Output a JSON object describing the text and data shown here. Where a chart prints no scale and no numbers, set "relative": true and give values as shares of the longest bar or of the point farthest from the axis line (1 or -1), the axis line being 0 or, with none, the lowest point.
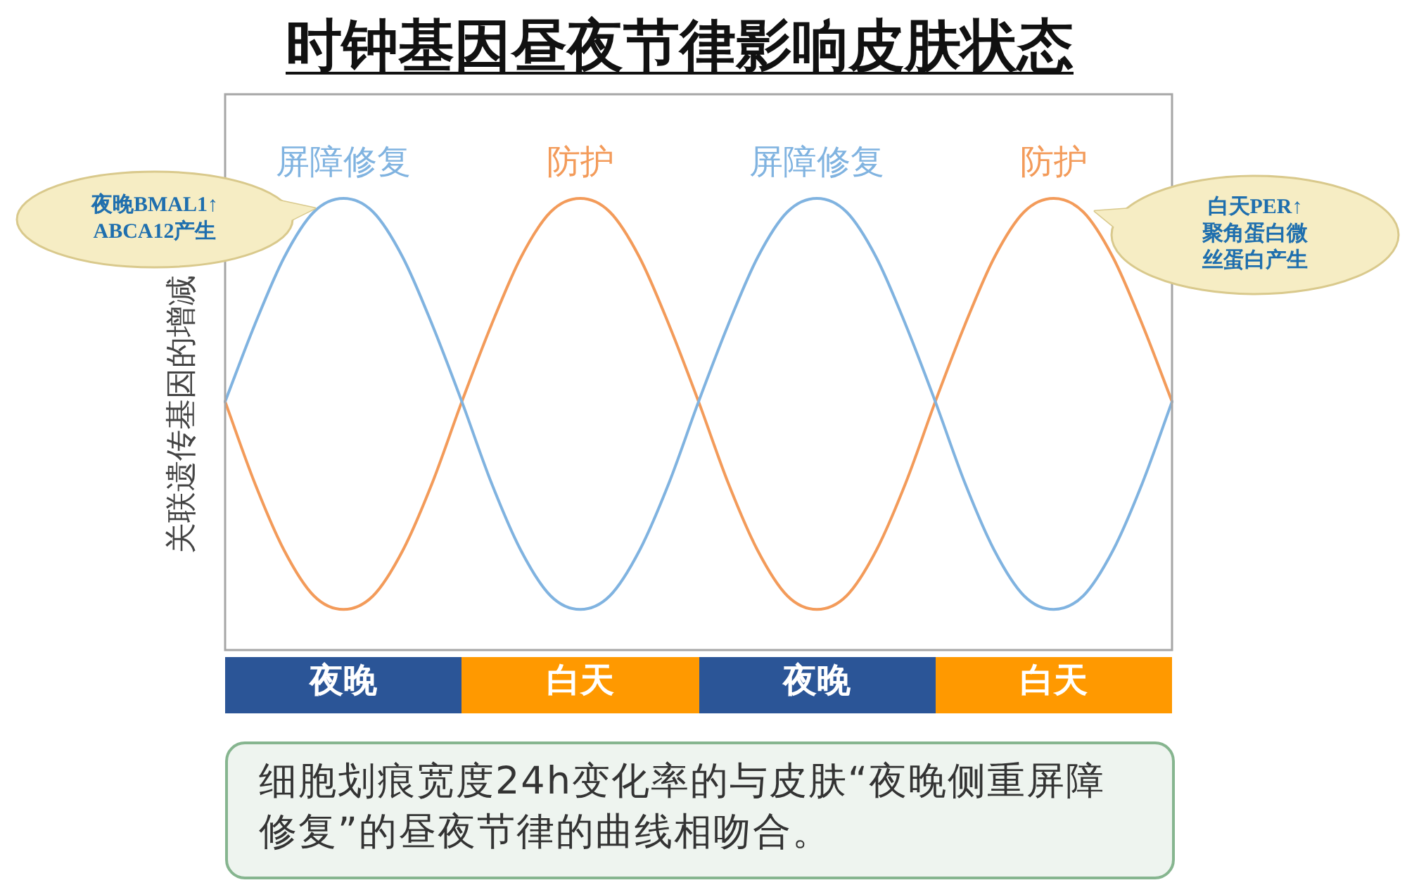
{
  "chart_data": {
    "type": "line",
    "title": "时钟基因昼夜节律影响皮肤状态",
    "ylabel": "关联遗传基因的增减",
    "relative": true,
    "line_style": "solid",
    "categories": [
      null,
      null,
      null,
      null,
      "夜晚",
      null,
      null,
      null,
      null,
      null,
      null,
      null,
      "白天",
      null,
      null,
      null,
      null,
      null,
      null,
      null,
      "夜晚",
      null,
      null,
      null,
      null,
      null,
      null,
      null,
      "白天",
      null,
      null,
      null,
      null
    ],
    "series": [
      {
        "name": "屏障修复",
        "color": "#80b3e0",
        "values": [
          0.55,
          0.72,
          0.87,
          0.97,
          1,
          0.97,
          0.87,
          0.72,
          0.55,
          0.37,
          0.22,
          0.12,
          0.09,
          0.12,
          0.22,
          0.37,
          0.55,
          0.72,
          0.87,
          0.97,
          1,
          0.97,
          0.87,
          0.72,
          0.55,
          0.37,
          0.22,
          0.12,
          0.09,
          0.12,
          0.22,
          0.37,
          0.55
        ]
      },
      {
        "name": "防护",
        "color": "#f39b5a",
        "values": [
          0.55,
          0.37,
          0.22,
          0.12,
          0.09,
          0.12,
          0.22,
          0.37,
          0.55,
          0.72,
          0.87,
          0.97,
          1,
          0.97,
          0.87,
          0.72,
          0.55,
          0.37,
          0.22,
          0.12,
          0.09,
          0.12,
          0.22,
          0.37,
          0.55,
          0.72,
          0.87,
          0.97,
          1,
          0.97,
          0.87,
          0.72,
          0.55
        ]
      }
    ],
    "annotations": [
      "夜晚BMAL1↑ ABCA12产生",
      "白天PER↑ 聚角蛋白微丝蛋白产生",
      "细胞划痕宽度24h变化率的与皮肤“夜晚侧重屏障修复”的昼夜节律的曲线相吻合。"
    ]
  }
}
